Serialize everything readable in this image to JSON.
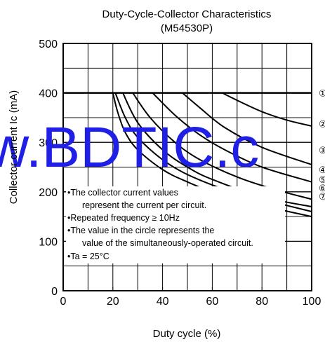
{
  "chart_data": {
    "type": "line",
    "title": "Duty-Cycle-Collector Characteristics",
    "subtitle": "(M54530P)",
    "xlabel": "Duty cycle  (%)",
    "ylabel": "Collector current Ic (mA)",
    "xlim": [
      0,
      100
    ],
    "ylim": [
      0,
      500
    ],
    "x_ticks": [
      0,
      20,
      40,
      60,
      80,
      100
    ],
    "x_tick_labels": [
      "0",
      "20",
      "40",
      "60",
      "80",
      "100"
    ],
    "y_ticks": [
      0,
      100,
      200,
      300,
      400,
      500
    ],
    "y_tick_labels": [
      "0",
      "100",
      "200",
      "300",
      "400",
      "500"
    ],
    "grid": true,
    "series": [
      {
        "name": "①",
        "x": [
          64,
          70,
          80,
          90,
          100
        ],
        "y": [
          400,
          385,
          362,
          345,
          333
        ]
      },
      {
        "name": "②",
        "x": [
          48,
          55,
          65,
          80,
          100
        ],
        "y": [
          400,
          370,
          330,
          290,
          255
        ]
      },
      {
        "name": "③",
        "x": [
          36,
          45,
          55,
          65,
          80,
          100
        ],
        "y": [
          400,
          355,
          315,
          285,
          250,
          220
        ]
      },
      {
        "name": "④",
        "x": [
          28,
          35,
          45,
          55,
          70,
          85,
          100
        ],
        "y": [
          400,
          350,
          300,
          265,
          230,
          205,
          185
        ]
      },
      {
        "name": "⑤",
        "x": [
          24,
          30,
          40,
          50,
          60,
          80,
          100
        ],
        "y": [
          400,
          340,
          285,
          250,
          225,
          190,
          170
        ]
      },
      {
        "name": "⑥",
        "x": [
          21,
          25,
          30,
          40,
          50,
          65,
          80,
          100
        ],
        "y": [
          400,
          350,
          310,
          265,
          235,
          205,
          185,
          160
        ]
      },
      {
        "name": "⑦",
        "x": [
          20,
          22,
          25,
          30,
          40,
          50,
          65,
          80,
          100
        ],
        "y": [
          400,
          360,
          320,
          285,
          245,
          220,
          190,
          172,
          150
        ]
      }
    ],
    "annotation_lines": [
      "•The collector current values",
      "represent the current per circuit.",
      "•Repeated frequency ≥ 10Hz",
      "•The value in the circle represents the",
      "value of the simultaneously-operated circuit.",
      "•Ta = 25°C"
    ],
    "watermark": "w.BDTIC.c"
  }
}
